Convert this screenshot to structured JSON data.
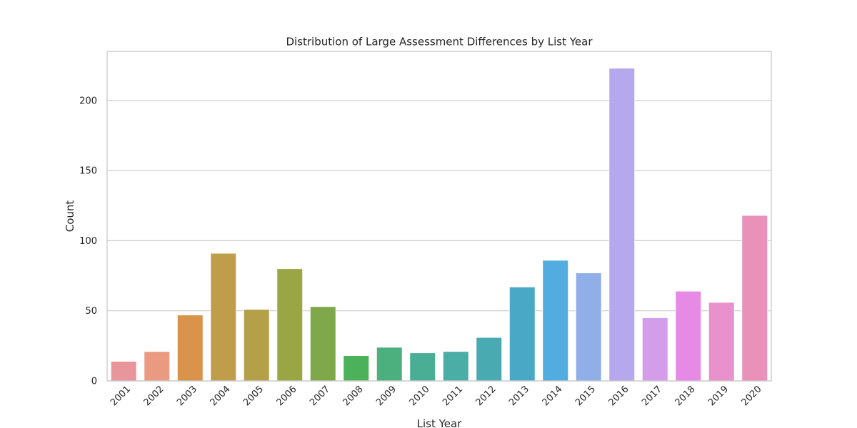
{
  "chart_data": {
    "type": "bar",
    "title": "Distribution of Large Assessment Differences by List Year",
    "xlabel": "List Year",
    "ylabel": "Count",
    "ylim": [
      0,
      235
    ],
    "yticks": [
      0,
      50,
      100,
      150,
      200
    ],
    "grid": "horizontal",
    "categories": [
      "2001",
      "2002",
      "2003",
      "2004",
      "2005",
      "2006",
      "2007",
      "2008",
      "2009",
      "2010",
      "2011",
      "2012",
      "2013",
      "2014",
      "2015",
      "2016",
      "2017",
      "2018",
      "2019",
      "2020"
    ],
    "values": [
      14,
      21,
      47,
      91,
      51,
      80,
      53,
      18,
      24,
      20,
      21,
      31,
      67,
      86,
      77,
      223,
      45,
      64,
      56,
      118
    ],
    "colors": [
      "#e8969b",
      "#e99a80",
      "#d9934b",
      "#bf9d4a",
      "#b5a04a",
      "#9aa544",
      "#7ea849",
      "#4bb15a",
      "#4cb07e",
      "#4aae95",
      "#4aada6",
      "#49aab2",
      "#4aa8c7",
      "#52ace0",
      "#90aee8",
      "#b6a8ed",
      "#d49de9",
      "#e68ae6",
      "#e991cc",
      "#e991b8"
    ]
  }
}
